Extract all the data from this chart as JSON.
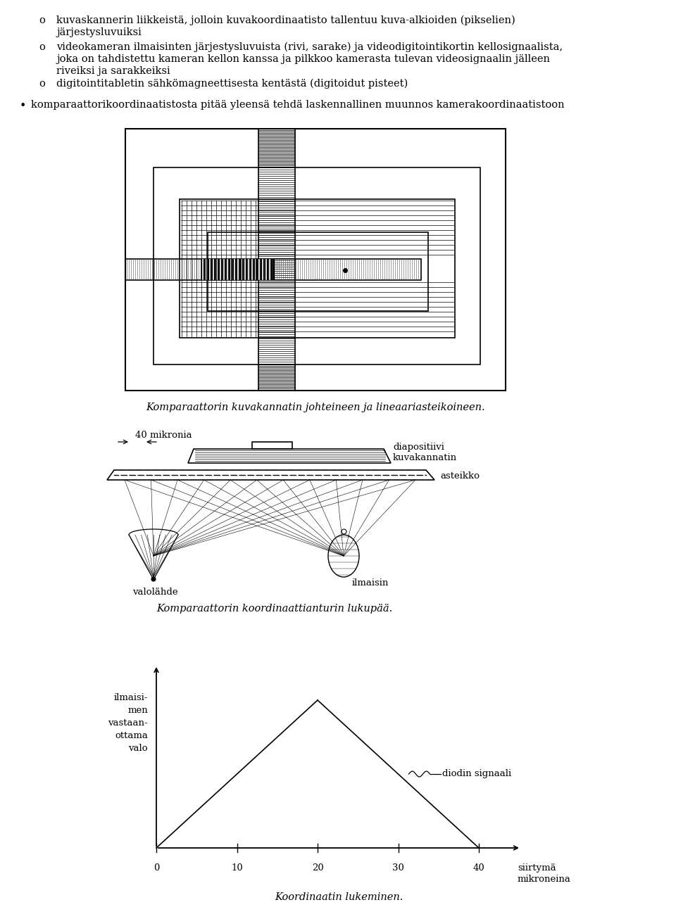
{
  "bg_color": "#ffffff",
  "text_color": "#000000",
  "line_color": "#000000",
  "bullet1_line1": "kuvaskannerin liikkeistä, jolloin kuvakoordinaatisto tallentuu kuva-alkioiden (pikselien)",
  "bullet1_line2": "järjestysluvuiksi",
  "bullet2_line1": "videokameran ilmaisinten järjestysluvuista (rivi, sarake) ja videodigitointikortin kellosignaalista,",
  "bullet2_line2": "joka on tahdistettu kameran kellon kanssa ja pilkkoo kamerasta tulevan videosignaalin jälleen",
  "bullet2_line3": "riveiksi ja sarakkeiksi",
  "bullet3_line1": "digitointitabletin sähkömagneettisesta kentästä (digitoidut pisteet)",
  "bullet_main": "komparaattorikoordinaatistosta pitää yleensä tehdä laskennallinen muunnos kamerakoordinaatistoon",
  "caption1": "Komparaattorin kuvakannatin johteineen ja lineaariasteikoineen.",
  "caption2": "Komparaattorin koordinaattianturin lukupää.",
  "caption3": "Koordinaatin lukeminen.",
  "label_40mikronia": "40 mikronia",
  "label_diapositiivi": "diapositiivi\nkuvakannatin",
  "label_asteikko": "asteikko",
  "label_valolahde": "valolähde",
  "label_ilmaisin": "ilmaisin",
  "ylabel_line1": "ilmaisi-",
  "ylabel_line2": "men",
  "ylabel_line3": "vastaan-",
  "ylabel_line4": "ottama",
  "ylabel_line5": "valo",
  "xlabel_line1": "siirtymä",
  "xlabel_line2": "mikroneina",
  "label_diodin": "diodin signaali",
  "xtick_labels": [
    "0",
    "10",
    "20",
    "30",
    "40"
  ],
  "figsize": [
    9.6,
    13.06
  ],
  "dpi": 100
}
